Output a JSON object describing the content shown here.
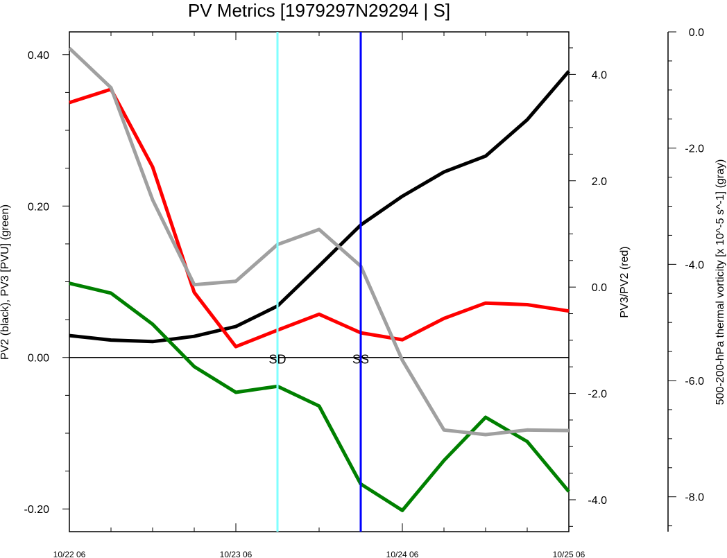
{
  "chart_data": {
    "type": "line",
    "title": "PV Metrics [1979297N29294 | S]",
    "x_tick_labels": [
      "10/22 06",
      "10/23 06",
      "10/24 06",
      "10/25 06"
    ],
    "x_range_hours": [
      0,
      72
    ],
    "x_hours": [
      0,
      6,
      12,
      18,
      24,
      30,
      36,
      42,
      48,
      54,
      60,
      66,
      72
    ],
    "left_axis": {
      "label": "PV2 (black), PV3 [PVU] (green)",
      "range": [
        -0.23,
        0.43
      ],
      "ticks": [
        "0.40",
        "0.20",
        "0.00",
        "-0.20"
      ],
      "tick_values": [
        0.4,
        0.2,
        0.0,
        -0.2
      ]
    },
    "right_axis": {
      "label": "PV3/PV2 (red)",
      "range": [
        -4.6,
        4.8
      ],
      "ticks": [
        "4.0",
        "2.0",
        "0.0",
        "-2.0",
        "-4.0"
      ],
      "tick_values": [
        4.0,
        2.0,
        0.0,
        -2.0,
        -4.0
      ]
    },
    "far_right_axis": {
      "label": "500-200-hPa thermal vorticity [x 10^-5 s^-1] (gray)",
      "range": [
        -8.6,
        0.0
      ],
      "ticks": [
        "0.0",
        "-2.0",
        "-4.0",
        "-6.0",
        "-8.0"
      ],
      "tick_values": [
        0.0,
        -2.0,
        -4.0,
        -6.0,
        -8.0
      ]
    },
    "series": [
      {
        "axis": "left",
        "color": "#000000",
        "values": [
          0.029,
          0.023,
          0.021,
          0.028,
          0.041,
          0.068,
          0.121,
          0.175,
          0.213,
          0.245,
          0.266,
          0.314,
          0.378
        ]
      },
      {
        "axis": "left",
        "color": "#008000",
        "values": [
          0.098,
          0.085,
          0.044,
          -0.012,
          -0.046,
          -0.038,
          -0.064,
          -0.167,
          -0.202,
          -0.136,
          -0.079,
          -0.111,
          -0.177
        ]
      },
      {
        "axis": "right",
        "color": "#ff0000",
        "values": [
          3.47,
          3.72,
          2.26,
          -0.1,
          -1.12,
          -0.81,
          -0.51,
          -0.86,
          -0.99,
          -0.59,
          -0.3,
          -0.33,
          -0.45
        ]
      },
      {
        "axis": "far_right",
        "color": "#a0a0a0",
        "values": [
          -0.28,
          -0.96,
          -2.89,
          -4.35,
          -4.29,
          -3.66,
          -3.4,
          -4.03,
          -5.65,
          -6.85,
          -6.93,
          -6.85,
          -6.86
        ]
      }
    ],
    "vertical_lines": [
      {
        "label": "SD",
        "x_hours": 30,
        "color": "#80ffff"
      },
      {
        "label": "SS",
        "x_hours": 42,
        "color": "#0000ff"
      }
    ],
    "zero_line": true
  }
}
